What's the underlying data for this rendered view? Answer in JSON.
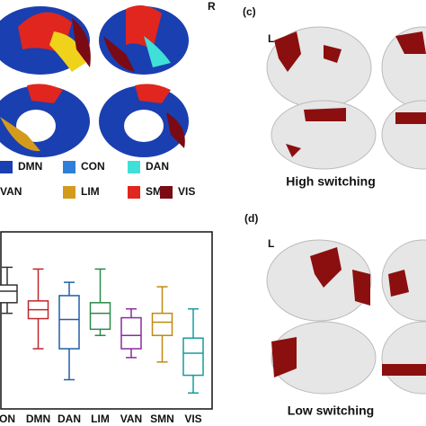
{
  "labels": {
    "r": "R",
    "c": "(c)",
    "c_l": "L",
    "high": "High switching",
    "d": "(d)",
    "d_l": "L",
    "low": "Low switching"
  },
  "legend": [
    {
      "name": "DMN",
      "color": "#1a3fb0"
    },
    {
      "name": "CON",
      "color": "#2f7fd8"
    },
    {
      "name": "DAN",
      "color": "#3fe0d8"
    },
    {
      "name": "VAN"
    },
    {
      "name": "LIM",
      "color": "#d49a1c"
    },
    {
      "name": "SMN",
      "color": "#e0261e"
    },
    {
      "name": "VIS",
      "color": "#7a0a14"
    }
  ],
  "chart_data": {
    "type": "box",
    "categories": [
      "ON",
      "DMN",
      "DAN",
      "LIM",
      "VAN",
      "SMN",
      "VIS"
    ],
    "colors": [
      "#333333",
      "#c0262d",
      "#1f5fa8",
      "#2a8a4a",
      "#8a2aa0",
      "#c08a10",
      "#1a9a9a"
    ],
    "boxes": [
      {
        "min": 0.54,
        "q1": 0.6,
        "median": 0.665,
        "q3": 0.7,
        "max": 0.8
      },
      {
        "min": 0.34,
        "q1": 0.51,
        "median": 0.56,
        "q3": 0.61,
        "max": 0.79
      },
      {
        "min": 0.165,
        "q1": 0.34,
        "median": 0.505,
        "q3": 0.64,
        "max": 0.715
      },
      {
        "min": 0.415,
        "q1": 0.45,
        "median": 0.54,
        "q3": 0.6,
        "max": 0.79
      },
      {
        "min": 0.29,
        "q1": 0.34,
        "median": 0.415,
        "q3": 0.515,
        "max": 0.565
      },
      {
        "min": 0.265,
        "q1": 0.415,
        "median": 0.49,
        "q3": 0.54,
        "max": 0.69
      },
      {
        "min": 0.09,
        "q1": 0.19,
        "median": 0.315,
        "q3": 0.4,
        "max": 0.565
      }
    ],
    "ylim": [
      0,
      1
    ]
  }
}
